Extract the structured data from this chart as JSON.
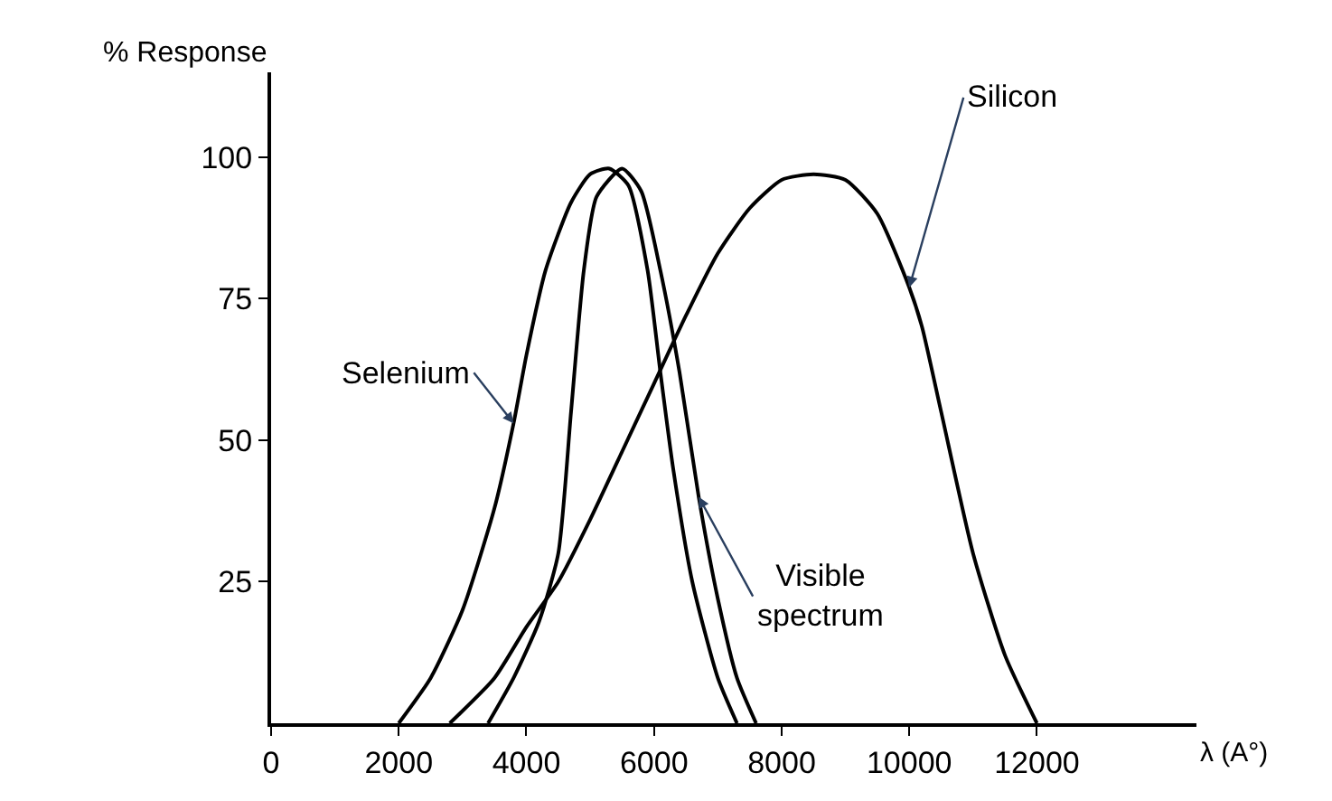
{
  "chart_data": {
    "type": "line",
    "xlabel": "λ (A°)",
    "ylabel": "% Response",
    "xlim": [
      0,
      14500
    ],
    "ylim": [
      0,
      115
    ],
    "xticks": [
      0,
      2000,
      4000,
      6000,
      8000,
      10000,
      12000
    ],
    "yticks": [
      25,
      50,
      75,
      100
    ],
    "legend": false,
    "marker": "none",
    "line_style": "solid",
    "series": [
      {
        "name": "Selenium",
        "color": "#000000",
        "x": [
          2000,
          2500,
          3000,
          3500,
          3800,
          4000,
          4300,
          4700,
          5000,
          5300,
          5600,
          5900,
          6100,
          6300,
          6600,
          7000,
          7300
        ],
        "values": [
          0,
          8,
          20,
          38,
          53,
          65,
          80,
          92,
          97,
          98,
          95,
          80,
          62,
          45,
          25,
          8,
          0
        ]
      },
      {
        "name": "Visible spectrum",
        "color": "#000000",
        "x": [
          3400,
          3800,
          4200,
          4500,
          4700,
          4900,
          5100,
          5500,
          5800,
          6100,
          6400,
          6700,
          7000,
          7300,
          7600
        ],
        "values": [
          0,
          8,
          18,
          30,
          55,
          80,
          93,
          98,
          94,
          80,
          62,
          40,
          22,
          8,
          0
        ]
      },
      {
        "name": "Silicon",
        "color": "#000000",
        "x": [
          2800,
          3500,
          4000,
          4500,
          5000,
          5500,
          6000,
          6500,
          7000,
          7500,
          8000,
          8500,
          9000,
          9500,
          10000,
          10200,
          10500,
          11000,
          11500,
          12000
        ],
        "values": [
          0,
          8,
          17,
          25,
          36,
          48,
          60,
          72,
          83,
          91,
          96,
          97,
          96,
          90,
          77,
          70,
          55,
          30,
          12,
          0
        ]
      }
    ]
  }
}
